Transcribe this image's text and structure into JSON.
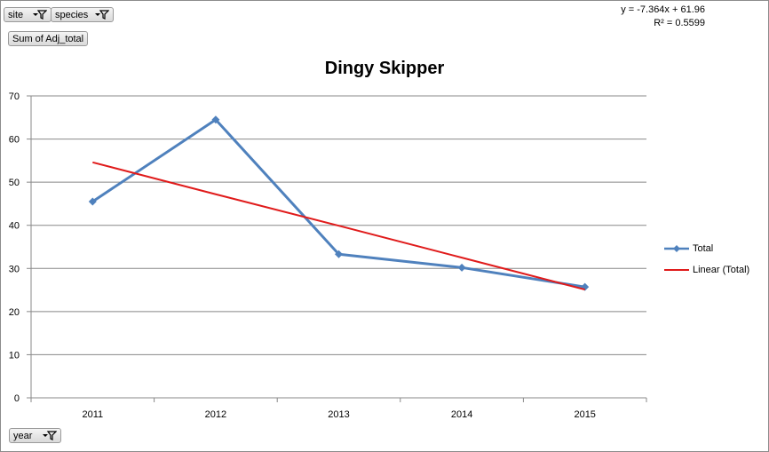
{
  "pivot": {
    "filters": [
      {
        "label": "site",
        "icon": "filter-dropdown-icon"
      },
      {
        "label": "species",
        "icon": "filter-dropdown-icon"
      }
    ],
    "value_field": "Sum of Adj_total",
    "axis_field": {
      "label": "year",
      "icon": "filter-icon"
    }
  },
  "trendline_label": {
    "equation": "y = -7.364x + 61.96",
    "r2": "R² = 0.5599"
  },
  "colors": {
    "total": "#4f81bd",
    "linear": "#e01b1b",
    "grid": "#888888",
    "axis": "#888888"
  },
  "chart_data": {
    "type": "line",
    "title": "Dingy Skipper",
    "categories": [
      "2011",
      "2012",
      "2013",
      "2014",
      "2015"
    ],
    "series": [
      {
        "name": "Total",
        "values": [
          45.5,
          64.5,
          33.3,
          30.2,
          25.7
        ],
        "marker": "diamond"
      },
      {
        "name": "Linear (Total)",
        "values": [
          54.6,
          47.2,
          39.9,
          32.5,
          25.1
        ],
        "marker": "none"
      }
    ],
    "ylim": [
      0,
      70
    ],
    "yticks": [
      0,
      10,
      20,
      30,
      40,
      50,
      60,
      70
    ],
    "grid": true,
    "legend": "right"
  }
}
